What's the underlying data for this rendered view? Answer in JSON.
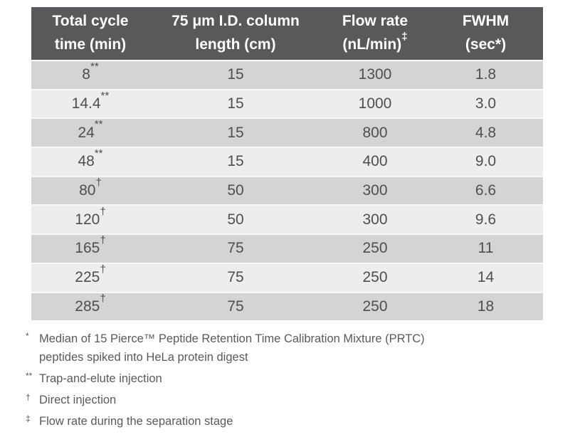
{
  "colors": {
    "header_bg": "#58595b",
    "row_dark": "#d2d4d5",
    "row_light": "#ebedee",
    "row_separator": "#f7f8f8",
    "cell_text": "#4e4f51",
    "header_text": "#ffffff",
    "footnote_text": "#595a5c"
  },
  "table": {
    "headers": [
      {
        "text": "Total cycle\ntime (min)",
        "marker": ""
      },
      {
        "text": "75 μm I.D. column\nlength (cm)",
        "marker": ""
      },
      {
        "text": "Flow rate\n(nL/min)",
        "marker": "‡"
      },
      {
        "text": "FWHM\n(sec*)",
        "marker": ""
      }
    ],
    "rows": [
      {
        "time": "8",
        "time_marker": "**",
        "length": "15",
        "flow": "1300",
        "fwhm": "1.8"
      },
      {
        "time": "14.4",
        "time_marker": "**",
        "length": "15",
        "flow": "1000",
        "fwhm": "3.0"
      },
      {
        "time": "24",
        "time_marker": "**",
        "length": "15",
        "flow": "800",
        "fwhm": "4.8"
      },
      {
        "time": "48",
        "time_marker": "**",
        "length": "15",
        "flow": "400",
        "fwhm": "9.0"
      },
      {
        "time": "80",
        "time_marker": "†",
        "length": "50",
        "flow": "300",
        "fwhm": "6.6"
      },
      {
        "time": "120",
        "time_marker": "†",
        "length": "50",
        "flow": "300",
        "fwhm": "9.6"
      },
      {
        "time": "165",
        "time_marker": "†",
        "length": "75",
        "flow": "250",
        "fwhm": "11"
      },
      {
        "time": "225",
        "time_marker": "†",
        "length": "75",
        "flow": "250",
        "fwhm": "14"
      },
      {
        "time": "285",
        "time_marker": "†",
        "length": "75",
        "flow": "250",
        "fwhm": "18"
      }
    ]
  },
  "footnotes": [
    {
      "marker": "*",
      "text": "Median of 15 Pierce™ Peptide Retention Time Calibration Mixture (PRTC)\npeptides spiked into HeLa protein digest"
    },
    {
      "marker": "**",
      "text": "Trap-and-elute injection"
    },
    {
      "marker": "†",
      "text": "Direct injection"
    },
    {
      "marker": "‡",
      "text": "Flow rate during the separation stage"
    }
  ]
}
